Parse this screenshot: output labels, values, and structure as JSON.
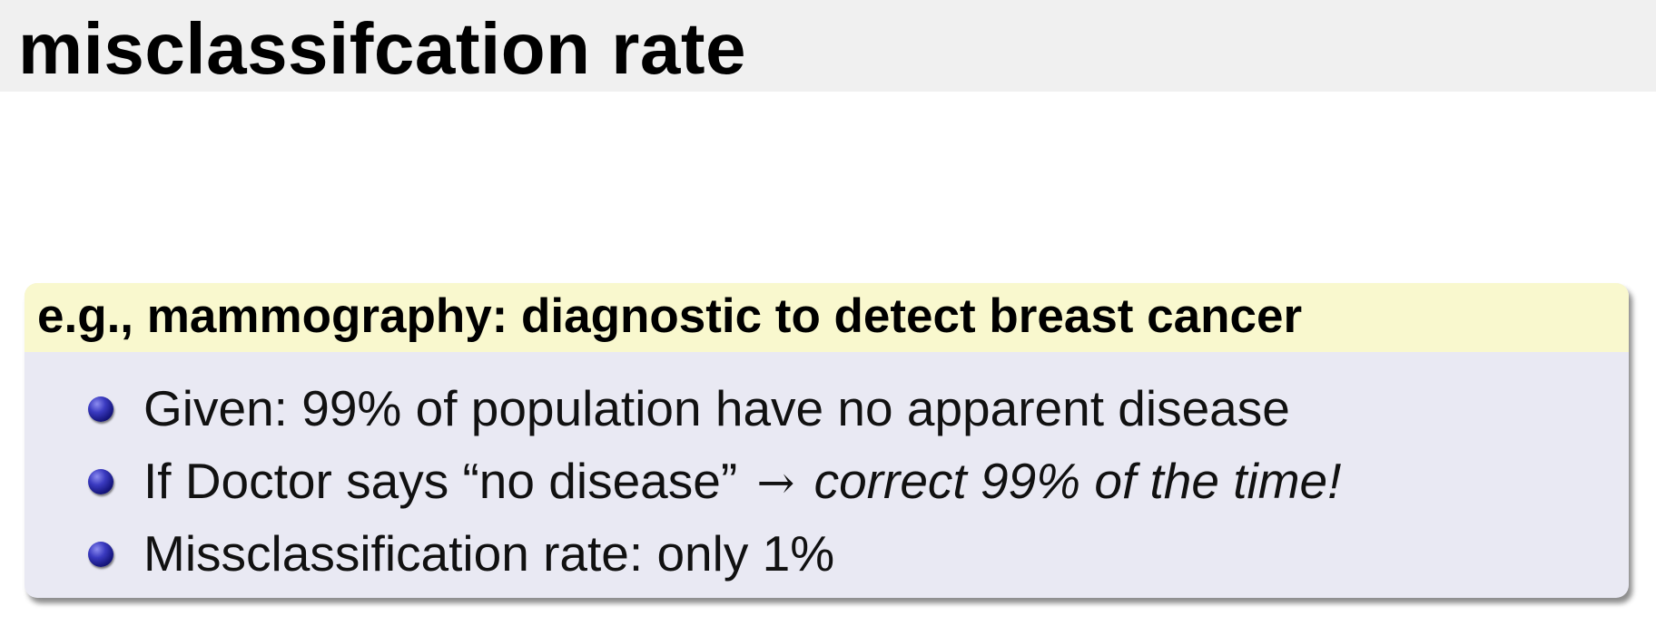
{
  "slide": {
    "title": "misclassifcation rate"
  },
  "example_block": {
    "title": "e.g., mammography: diagnostic to detect breast cancer",
    "bullets": [
      {
        "text": "Given: 99% of population have no apparent disease"
      },
      {
        "text": "If Doctor says “no disease”",
        "arrow": "→",
        "emphasis": "correct 99% of the time!"
      },
      {
        "text": "Missclassification rate: only 1%"
      }
    ]
  },
  "colors": {
    "title_bar_bg": "#f0f0f0",
    "block_header_bg": "#f9f8ce",
    "block_body_bg": "#e9e9f3",
    "bullet": "#2a2aa8"
  }
}
